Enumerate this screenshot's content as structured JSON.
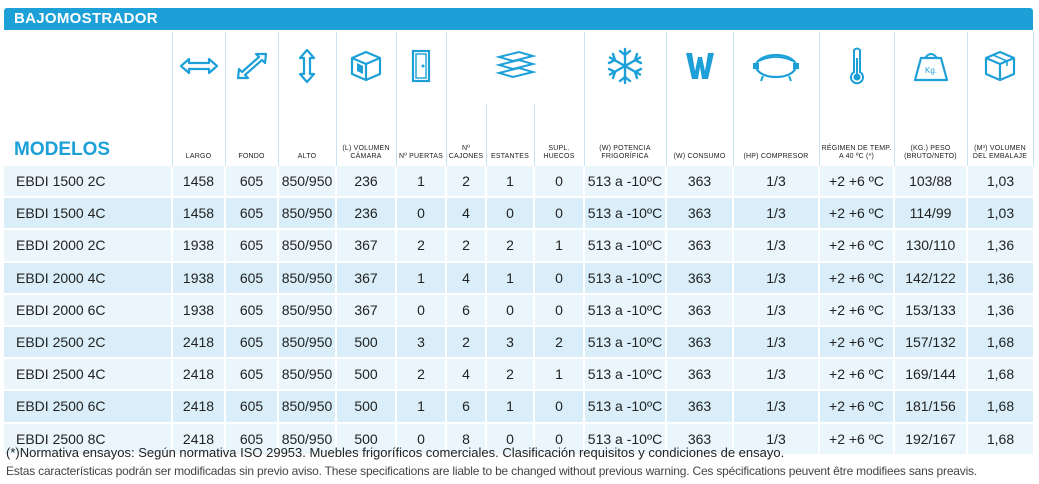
{
  "title": "BAJOMOSTRADOR",
  "modelos_label": "MODELOS",
  "columns": [
    {
      "icon": "width-arrows-icon",
      "label": "LARGO"
    },
    {
      "icon": "depth-arrows-icon",
      "label": "FONDO"
    },
    {
      "icon": "height-arrows-icon",
      "label": "ALTO"
    },
    {
      "icon": "volume-cube-icon",
      "label": "(L) VOLUMEN CÁMARA"
    },
    {
      "icon": "door-icon",
      "label": "Nº PUERTAS"
    },
    {
      "icon": "drawers-icon",
      "label": "Nº CAJONES"
    },
    {
      "icon": "",
      "label": "ESTANTES"
    },
    {
      "icon": "",
      "label": "SUPL. HUECOS"
    },
    {
      "icon": "snowflake-icon",
      "label": "(W) POTENCIA FRIGORÍFICA"
    },
    {
      "icon": "watt-icon",
      "label": "(W) CONSUMO"
    },
    {
      "icon": "compressor-icon",
      "label": "(HP) COMPRESOR"
    },
    {
      "icon": "thermometer-icon",
      "label": "RÉGIMEN DE TEMP. A 40 ºC (*)"
    },
    {
      "icon": "weight-icon",
      "label": "(Kg.) PESO (BRUTO/NETO)"
    },
    {
      "icon": "package-icon",
      "label": "(m³) VOLUMEN DEL EMBALAJE"
    }
  ],
  "rows": [
    [
      "EBDI 1500 2C",
      "1458",
      "605",
      "850/950",
      "236",
      "1",
      "2",
      "1",
      "0",
      "513 a -10ºC",
      "363",
      "1/3",
      "+2  +6 ºC",
      "103/88",
      "1,03"
    ],
    [
      "EBDI 1500 4C",
      "1458",
      "605",
      "850/950",
      "236",
      "0",
      "4",
      "0",
      "0",
      "513 a -10ºC",
      "363",
      "1/3",
      "+2  +6 ºC",
      "114/99",
      "1,03"
    ],
    [
      "EBDI 2000 2C",
      "1938",
      "605",
      "850/950",
      "367",
      "2",
      "2",
      "2",
      "1",
      "513 a -10ºC",
      "363",
      "1/3",
      "+2  +6 ºC",
      "130/110",
      "1,36"
    ],
    [
      "EBDI 2000 4C",
      "1938",
      "605",
      "850/950",
      "367",
      "1",
      "4",
      "1",
      "0",
      "513 a -10ºC",
      "363",
      "1/3",
      "+2  +6 ºC",
      "142/122",
      "1,36"
    ],
    [
      "EBDI 2000 6C",
      "1938",
      "605",
      "850/950",
      "367",
      "0",
      "6",
      "0",
      "0",
      "513 a -10ºC",
      "363",
      "1/3",
      "+2  +6 ºC",
      "153/133",
      "1,36"
    ],
    [
      "EBDI 2500 2C",
      "2418",
      "605",
      "850/950",
      "500",
      "3",
      "2",
      "3",
      "2",
      "513 a -10ºC",
      "363",
      "1/3",
      "+2  +6 ºC",
      "157/132",
      "1,68"
    ],
    [
      "EBDI 2500 4C",
      "2418",
      "605",
      "850/950",
      "500",
      "2",
      "4",
      "2",
      "1",
      "513 a -10ºC",
      "363",
      "1/3",
      "+2  +6 ºC",
      "169/144",
      "1,68"
    ],
    [
      "EBDI 2500 6C",
      "2418",
      "605",
      "850/950",
      "500",
      "1",
      "6",
      "1",
      "0",
      "513 a -10ºC",
      "363",
      "1/3",
      "+2  +6 ºC",
      "181/156",
      "1,68"
    ],
    [
      "EBDI 2500 8C",
      "2418",
      "605",
      "850/950",
      "500",
      "0",
      "8",
      "0",
      "0",
      "513 a -10ºC",
      "363",
      "1/3",
      "+2  +6 ºC",
      "192/167",
      "1,68"
    ]
  ],
  "footnote": "(*)Normativa ensayos: Según normativa ISO 29953. Muebles frigoríficos comerciales. Clasificación requisitos y condiciones de ensayo.",
  "disclaimer": "Estas características podrán ser modificadas sin previo aviso. These specifications are liable to be changed without previous warning. Ces spécifications peuvent être modifiees sans preavis.",
  "colors": {
    "accent": "#1da0d8",
    "row_a": "#eaf6fc",
    "row_b": "#d9eef8"
  }
}
